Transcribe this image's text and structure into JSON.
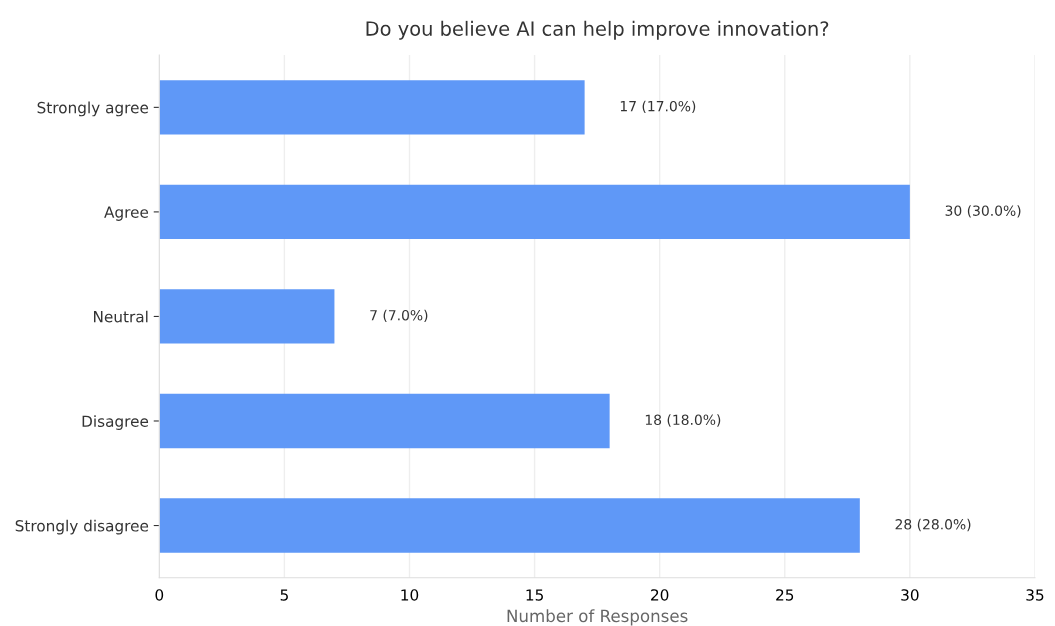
{
  "chart_data": {
    "type": "bar",
    "orientation": "horizontal",
    "title": "Do you believe AI can help improve innovation?",
    "xlabel": "Number of Responses",
    "categories": [
      "Strongly agree",
      "Agree",
      "Neutral",
      "Disagree",
      "Strongly disagree"
    ],
    "values": [
      17,
      30,
      7,
      18,
      28
    ],
    "value_labels": [
      "17 (17.0%)",
      "30 (30.0%)",
      "7 (7.0%)",
      "18 (18.0%)",
      "28 (28.0%)"
    ],
    "color": "#5f98f7",
    "xlim": [
      0,
      35
    ],
    "xticks": [
      0,
      5,
      10,
      15,
      20,
      25,
      30,
      35
    ],
    "grid": "x",
    "legend": false
  }
}
